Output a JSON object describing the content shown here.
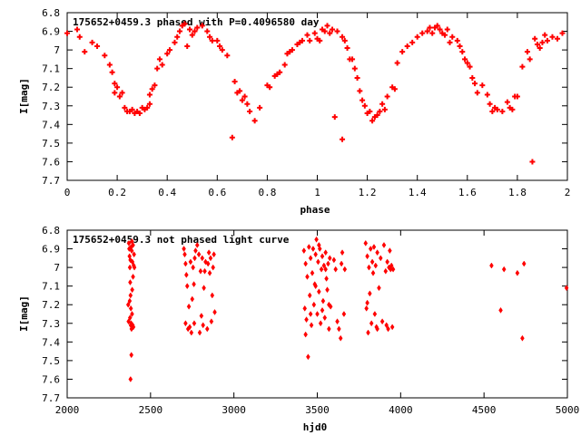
{
  "chart_data": [
    {
      "type": "scatter",
      "title": "175652+0459.3 phased with P=0.4096580 day",
      "xlabel": "phase",
      "ylabel": "I[mag]",
      "xlim": [
        0,
        2
      ],
      "ylim": [
        7.7,
        6.8
      ],
      "y_inverted": true,
      "x_ticks": [
        "0",
        "0.2",
        "0.4",
        "0.6",
        "0.8",
        "1",
        "1.2",
        "1.4",
        "1.6",
        "1.8",
        "2"
      ],
      "y_ticks": [
        "6.8",
        "6.9",
        "7",
        "7.1",
        "7.2",
        "7.3",
        "7.4",
        "7.5",
        "7.6",
        "7.7"
      ],
      "marker": "plus",
      "color": "#ff0000",
      "grid": false,
      "points": [
        [
          0.0,
          6.91
        ],
        [
          0.04,
          6.89
        ],
        [
          0.05,
          6.93
        ],
        [
          0.07,
          7.01
        ],
        [
          0.1,
          6.96
        ],
        [
          0.12,
          6.98
        ],
        [
          0.15,
          7.03
        ],
        [
          0.17,
          7.08
        ],
        [
          0.18,
          7.12
        ],
        [
          0.19,
          7.18
        ],
        [
          0.19,
          7.23
        ],
        [
          0.2,
          7.2
        ],
        [
          0.21,
          7.25
        ],
        [
          0.22,
          7.23
        ],
        [
          0.23,
          7.31
        ],
        [
          0.24,
          7.33
        ],
        [
          0.25,
          7.33
        ],
        [
          0.26,
          7.32
        ],
        [
          0.27,
          7.34
        ],
        [
          0.28,
          7.33
        ],
        [
          0.29,
          7.34
        ],
        [
          0.3,
          7.31
        ],
        [
          0.31,
          7.32
        ],
        [
          0.32,
          7.31
        ],
        [
          0.33,
          7.29
        ],
        [
          0.33,
          7.24
        ],
        [
          0.34,
          7.21
        ],
        [
          0.35,
          7.19
        ],
        [
          0.36,
          7.1
        ],
        [
          0.37,
          7.05
        ],
        [
          0.38,
          7.08
        ],
        [
          0.4,
          7.02
        ],
        [
          0.41,
          7.0
        ],
        [
          0.43,
          6.96
        ],
        [
          0.44,
          6.93
        ],
        [
          0.45,
          6.9
        ],
        [
          0.46,
          6.87
        ],
        [
          0.47,
          6.86
        ],
        [
          0.48,
          6.98
        ],
        [
          0.49,
          6.89
        ],
        [
          0.5,
          6.92
        ],
        [
          0.51,
          6.9
        ],
        [
          0.52,
          6.88
        ],
        [
          0.54,
          6.87
        ],
        [
          0.56,
          6.9
        ],
        [
          0.57,
          6.93
        ],
        [
          0.58,
          6.95
        ],
        [
          0.6,
          6.95
        ],
        [
          0.61,
          6.98
        ],
        [
          0.62,
          7.0
        ],
        [
          0.64,
          7.03
        ],
        [
          0.66,
          7.47
        ],
        [
          0.67,
          7.17
        ],
        [
          0.68,
          7.23
        ],
        [
          0.69,
          7.22
        ],
        [
          0.7,
          7.27
        ],
        [
          0.71,
          7.25
        ],
        [
          0.72,
          7.29
        ],
        [
          0.73,
          7.33
        ],
        [
          0.75,
          7.38
        ],
        [
          0.77,
          7.31
        ],
        [
          0.8,
          7.19
        ],
        [
          0.81,
          7.2
        ],
        [
          0.83,
          7.14
        ],
        [
          0.84,
          7.13
        ],
        [
          0.85,
          7.12
        ],
        [
          0.87,
          7.08
        ],
        [
          0.88,
          7.02
        ],
        [
          0.89,
          7.01
        ],
        [
          0.9,
          7.0
        ],
        [
          0.92,
          6.97
        ],
        [
          0.93,
          6.96
        ],
        [
          0.94,
          6.95
        ],
        [
          0.96,
          6.92
        ],
        [
          0.97,
          6.95
        ],
        [
          0.99,
          6.91
        ],
        [
          1.0,
          6.94
        ],
        [
          1.01,
          6.95
        ],
        [
          1.02,
          6.89
        ],
        [
          1.03,
          6.9
        ],
        [
          1.04,
          6.87
        ],
        [
          1.05,
          6.91
        ],
        [
          1.06,
          6.89
        ],
        [
          1.07,
          7.36
        ],
        [
          1.08,
          6.9
        ],
        [
          1.1,
          6.93
        ],
        [
          1.1,
          7.48
        ],
        [
          1.11,
          6.95
        ],
        [
          1.12,
          6.99
        ],
        [
          1.13,
          7.05
        ],
        [
          1.14,
          7.05
        ],
        [
          1.15,
          7.1
        ],
        [
          1.16,
          7.15
        ],
        [
          1.17,
          7.22
        ],
        [
          1.18,
          7.27
        ],
        [
          1.19,
          7.3
        ],
        [
          1.2,
          7.34
        ],
        [
          1.21,
          7.33
        ],
        [
          1.22,
          7.38
        ],
        [
          1.23,
          7.36
        ],
        [
          1.24,
          7.35
        ],
        [
          1.25,
          7.33
        ],
        [
          1.26,
          7.29
        ],
        [
          1.27,
          7.32
        ],
        [
          1.28,
          7.25
        ],
        [
          1.3,
          7.2
        ],
        [
          1.31,
          7.21
        ],
        [
          1.32,
          7.07
        ],
        [
          1.34,
          7.01
        ],
        [
          1.36,
          6.98
        ],
        [
          1.38,
          6.96
        ],
        [
          1.4,
          6.93
        ],
        [
          1.42,
          6.91
        ],
        [
          1.44,
          6.9
        ],
        [
          1.45,
          6.88
        ],
        [
          1.46,
          6.91
        ],
        [
          1.47,
          6.88
        ],
        [
          1.48,
          6.87
        ],
        [
          1.49,
          6.89
        ],
        [
          1.5,
          6.91
        ],
        [
          1.51,
          6.92
        ],
        [
          1.52,
          6.89
        ],
        [
          1.53,
          6.96
        ],
        [
          1.54,
          6.93
        ],
        [
          1.56,
          6.95
        ],
        [
          1.57,
          6.98
        ],
        [
          1.58,
          7.01
        ],
        [
          1.59,
          7.05
        ],
        [
          1.6,
          7.07
        ],
        [
          1.61,
          7.09
        ],
        [
          1.62,
          7.15
        ],
        [
          1.63,
          7.18
        ],
        [
          1.64,
          7.23
        ],
        [
          1.66,
          7.19
        ],
        [
          1.68,
          7.24
        ],
        [
          1.69,
          7.29
        ],
        [
          1.7,
          7.33
        ],
        [
          1.71,
          7.31
        ],
        [
          1.72,
          7.32
        ],
        [
          1.74,
          7.33
        ],
        [
          1.76,
          7.28
        ],
        [
          1.77,
          7.31
        ],
        [
          1.78,
          7.32
        ],
        [
          1.79,
          7.25
        ],
        [
          1.8,
          7.25
        ],
        [
          1.82,
          7.09
        ],
        [
          1.84,
          7.01
        ],
        [
          1.85,
          7.05
        ],
        [
          1.86,
          7.6
        ],
        [
          1.87,
          6.94
        ],
        [
          1.88,
          6.97
        ],
        [
          1.89,
          6.99
        ],
        [
          1.9,
          6.96
        ],
        [
          1.91,
          6.92
        ],
        [
          1.92,
          6.95
        ],
        [
          1.94,
          6.93
        ],
        [
          1.96,
          6.94
        ],
        [
          1.98,
          6.91
        ]
      ]
    },
    {
      "type": "scatter",
      "title": "175652+0459.3 not phased light curve",
      "xlabel": "hjd0",
      "ylabel": "I[mag]",
      "xlim": [
        2000,
        5000
      ],
      "ylim": [
        7.7,
        6.8
      ],
      "y_inverted": true,
      "x_ticks": [
        "2000",
        "2500",
        "3000",
        "3500",
        "4000",
        "4500",
        "5000"
      ],
      "y_ticks": [
        "6.8",
        "6.9",
        "7",
        "7.1",
        "7.2",
        "7.3",
        "7.4",
        "7.5",
        "7.6",
        "7.7"
      ],
      "marker": "diamond",
      "color": "#ff0000",
      "grid": false,
      "points": [
        [
          2370,
          6.87
        ],
        [
          2372,
          6.9
        ],
        [
          2374,
          6.94
        ],
        [
          2376,
          7.0
        ],
        [
          2378,
          7.08
        ],
        [
          2380,
          7.15
        ],
        [
          2382,
          7.22
        ],
        [
          2384,
          7.3
        ],
        [
          2386,
          7.33
        ],
        [
          2388,
          6.86
        ],
        [
          2375,
          7.18
        ],
        [
          2377,
          7.27
        ],
        [
          2379,
          6.96
        ],
        [
          2381,
          7.31
        ],
        [
          2383,
          6.89
        ],
        [
          2385,
          7.47
        ],
        [
          2387,
          6.91
        ],
        [
          2389,
          7.25
        ],
        [
          2391,
          6.97
        ],
        [
          2393,
          7.31
        ],
        [
          2395,
          6.88
        ],
        [
          2397,
          7.32
        ],
        [
          2399,
          6.99
        ],
        [
          2401,
          6.93
        ],
        [
          2380,
          7.6
        ],
        [
          2366,
          7.2
        ],
        [
          2368,
          7.29
        ],
        [
          2390,
          7.12
        ],
        [
          2395,
          7.05
        ],
        [
          2403,
          7.0
        ],
        [
          2700,
          6.9
        ],
        [
          2705,
          6.93
        ],
        [
          2710,
          7.3
        ],
        [
          2715,
          7.04
        ],
        [
          2720,
          7.1
        ],
        [
          2725,
          7.33
        ],
        [
          2730,
          7.21
        ],
        [
          2740,
          6.97
        ],
        [
          2745,
          7.35
        ],
        [
          2750,
          7.17
        ],
        [
          2755,
          7.0
        ],
        [
          2760,
          7.09
        ],
        [
          2762,
          7.3
        ],
        [
          2765,
          6.95
        ],
        [
          2770,
          6.91
        ],
        [
          2780,
          6.88
        ],
        [
          2790,
          6.93
        ],
        [
          2800,
          7.02
        ],
        [
          2805,
          7.26
        ],
        [
          2810,
          6.95
        ],
        [
          2815,
          7.31
        ],
        [
          2820,
          7.11
        ],
        [
          2830,
          6.97
        ],
        [
          2840,
          7.33
        ],
        [
          2845,
          6.98
        ],
        [
          2850,
          6.92
        ],
        [
          2855,
          7.03
        ],
        [
          2860,
          6.95
        ],
        [
          2865,
          7.29
        ],
        [
          2870,
          7.15
        ],
        [
          2875,
          7.0
        ],
        [
          2880,
          6.93
        ],
        [
          2885,
          7.24
        ],
        [
          2710,
          6.98
        ],
        [
          2735,
          7.32
        ],
        [
          2795,
          7.35
        ],
        [
          2825,
          7.02
        ],
        [
          3420,
          6.91
        ],
        [
          3425,
          7.22
        ],
        [
          3430,
          6.98
        ],
        [
          3435,
          7.28
        ],
        [
          3440,
          7.05
        ],
        [
          3445,
          7.48
        ],
        [
          3450,
          6.89
        ],
        [
          3455,
          7.15
        ],
        [
          3460,
          6.95
        ],
        [
          3465,
          7.31
        ],
        [
          3470,
          7.03
        ],
        [
          3475,
          6.9
        ],
        [
          3480,
          7.2
        ],
        [
          3485,
          7.09
        ],
        [
          3490,
          6.93
        ],
        [
          3495,
          6.85
        ],
        [
          3500,
          7.25
        ],
        [
          3505,
          6.97
        ],
        [
          3510,
          7.13
        ],
        [
          3515,
          6.9
        ],
        [
          3520,
          7.3
        ],
        [
          3525,
          7.01
        ],
        [
          3530,
          6.94
        ],
        [
          3535,
          7.18
        ],
        [
          3540,
          6.99
        ],
        [
          3545,
          7.27
        ],
        [
          3550,
          6.92
        ],
        [
          3555,
          7.06
        ],
        [
          3560,
          7.12
        ],
        [
          3565,
          6.98
        ],
        [
          3570,
          7.33
        ],
        [
          3575,
          6.95
        ],
        [
          3580,
          7.21
        ],
        [
          3600,
          6.96
        ],
        [
          3610,
          7.01
        ],
        [
          3620,
          7.29
        ],
        [
          3630,
          7.33
        ],
        [
          3640,
          7.38
        ],
        [
          3645,
          6.98
        ],
        [
          3650,
          6.92
        ],
        [
          3660,
          7.25
        ],
        [
          3665,
          7.01
        ],
        [
          3430,
          7.36
        ],
        [
          3460,
          7.25
        ],
        [
          3490,
          7.1
        ],
        [
          3510,
          6.88
        ],
        [
          3530,
          7.23
        ],
        [
          3550,
          7.01
        ],
        [
          3570,
          7.2
        ],
        [
          3790,
          6.87
        ],
        [
          3795,
          7.22
        ],
        [
          3800,
          6.94
        ],
        [
          3805,
          7.35
        ],
        [
          3810,
          7.0
        ],
        [
          3815,
          7.14
        ],
        [
          3820,
          6.9
        ],
        [
          3825,
          7.3
        ],
        [
          3830,
          6.97
        ],
        [
          3835,
          7.03
        ],
        [
          3840,
          6.89
        ],
        [
          3845,
          7.25
        ],
        [
          3850,
          6.99
        ],
        [
          3855,
          7.32
        ],
        [
          3860,
          6.92
        ],
        [
          3870,
          7.11
        ],
        [
          3880,
          6.95
        ],
        [
          3890,
          7.29
        ],
        [
          3900,
          6.88
        ],
        [
          3910,
          7.02
        ],
        [
          3920,
          6.97
        ],
        [
          3925,
          7.33
        ],
        [
          3930,
          7.0
        ],
        [
          3935,
          6.91
        ],
        [
          3940,
          7.01
        ],
        [
          3945,
          6.99
        ],
        [
          3950,
          7.32
        ],
        [
          3955,
          7.01
        ],
        [
          3800,
          7.19
        ],
        [
          3860,
          7.33
        ],
        [
          3915,
          7.31
        ],
        [
          4545,
          6.99
        ],
        [
          4600,
          7.23
        ],
        [
          4620,
          7.01
        ],
        [
          4700,
          7.03
        ],
        [
          4730,
          7.38
        ],
        [
          4740,
          6.98
        ],
        [
          4995,
          7.11
        ]
      ]
    }
  ]
}
